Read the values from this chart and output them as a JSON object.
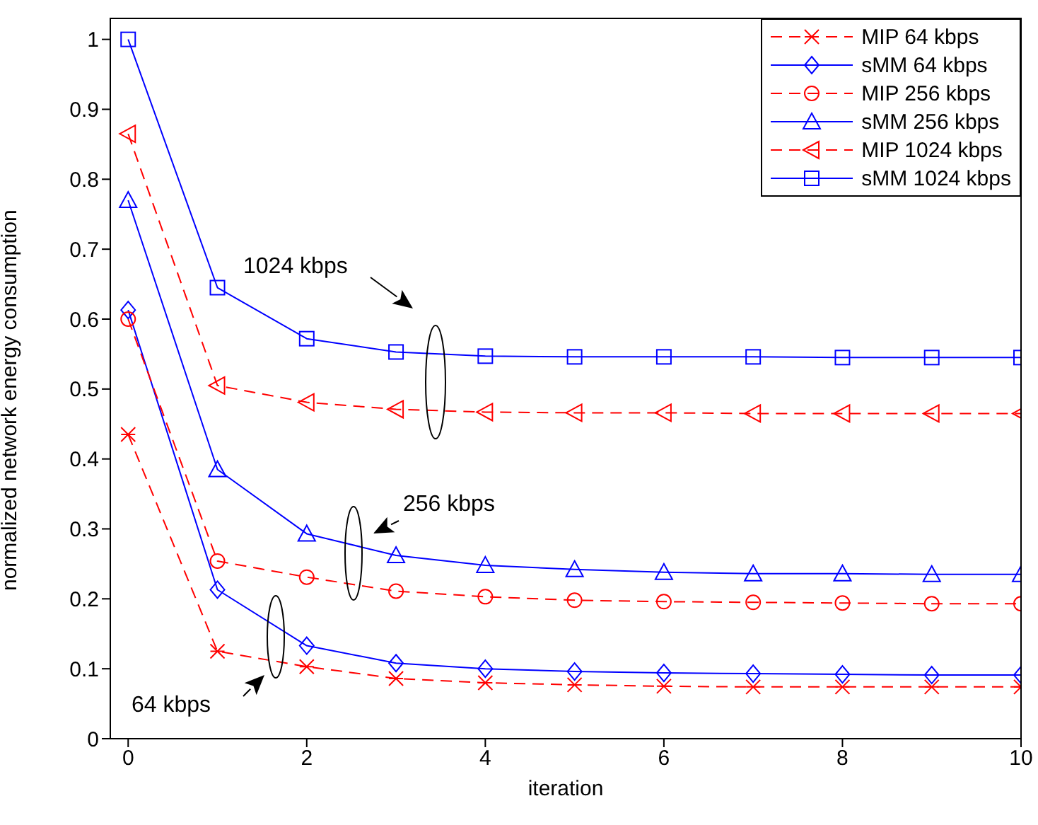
{
  "chart_data": {
    "type": "line",
    "xlabel": "iteration",
    "ylabel": "normalized network energy consumption",
    "x": [
      0,
      1,
      2,
      3,
      4,
      5,
      6,
      7,
      8,
      9,
      10
    ],
    "xlim": [
      -0.2,
      10
    ],
    "xticks": [
      0,
      2,
      4,
      6,
      8,
      10
    ],
    "ylim": [
      0,
      1.03
    ],
    "yticks": [
      0,
      0.1,
      0.2,
      0.3,
      0.4,
      0.5,
      0.6,
      0.7,
      0.8,
      0.9,
      1
    ],
    "legend": "top right",
    "grid": false,
    "annotations": [
      "1024 kbps",
      "256 kbps",
      "64 kbps"
    ],
    "series": [
      {
        "name": "MIP 64 kbps",
        "color": "#ff0000",
        "line_style": "dashed",
        "marker": "cross",
        "values": [
          0.435,
          0.125,
          0.103,
          0.086,
          0.08,
          0.077,
          0.075,
          0.074,
          0.074,
          0.074,
          0.074
        ]
      },
      {
        "name": "sMM 64 kbps",
        "color": "#0000ff",
        "line_style": "solid",
        "marker": "diamond",
        "values": [
          0.613,
          0.213,
          0.133,
          0.108,
          0.1,
          0.096,
          0.094,
          0.093,
          0.092,
          0.091,
          0.091
        ]
      },
      {
        "name": "MIP 256 kbps",
        "color": "#ff0000",
        "line_style": "dashed",
        "marker": "circle",
        "values": [
          0.6,
          0.254,
          0.231,
          0.211,
          0.203,
          0.198,
          0.196,
          0.195,
          0.194,
          0.193,
          0.193
        ]
      },
      {
        "name": "sMM 256 kbps",
        "color": "#0000ff",
        "line_style": "solid",
        "marker": "triangle",
        "values": [
          0.77,
          0.385,
          0.293,
          0.262,
          0.248,
          0.242,
          0.238,
          0.236,
          0.236,
          0.235,
          0.235
        ]
      },
      {
        "name": "MIP 1024 kbps",
        "color": "#ff0000",
        "line_style": "dashed",
        "marker": "triangle-left",
        "values": [
          0.865,
          0.505,
          0.481,
          0.471,
          0.467,
          0.466,
          0.466,
          0.465,
          0.465,
          0.465,
          0.465
        ]
      },
      {
        "name": "sMM 1024 kbps",
        "color": "#0000ff",
        "line_style": "solid",
        "marker": "square",
        "values": [
          1,
          0.645,
          0.572,
          0.553,
          0.547,
          0.546,
          0.546,
          0.546,
          0.545,
          0.545,
          0.545
        ]
      }
    ]
  }
}
